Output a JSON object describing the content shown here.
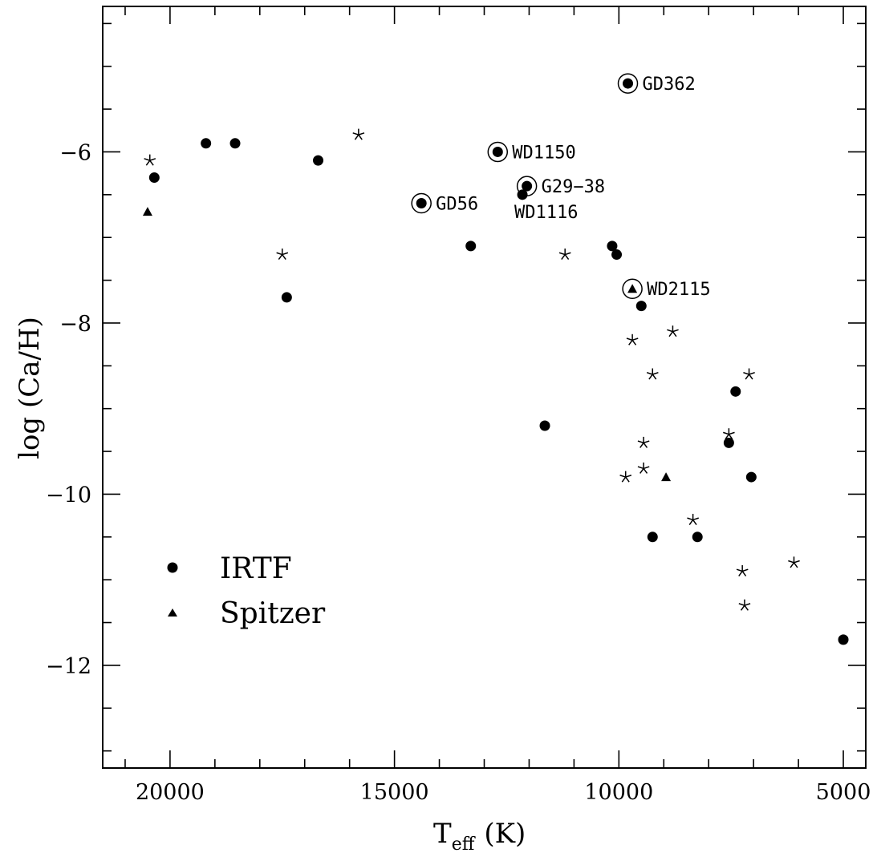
{
  "chart_data": {
    "type": "scatter",
    "title": "",
    "xlabel": {
      "main": "T",
      "sub": "eff",
      "unit": "(K)"
    },
    "ylabel": "log (Ca/H)",
    "xlim": [
      21500,
      4500
    ],
    "ylim": [
      -13.2,
      -4.3
    ],
    "x_ticks": [
      20000,
      15000,
      10000,
      5000
    ],
    "x_tick_labels": [
      "20000",
      "15000",
      "10000",
      "5000"
    ],
    "y_ticks": [
      -6,
      -8,
      -10,
      -12
    ],
    "y_tick_labels": [
      "−6",
      "−8",
      "−10",
      "−12"
    ],
    "grid": false,
    "legend": {
      "placement": "bottom-left",
      "entries": [
        "IRTF",
        "Spitzer"
      ]
    },
    "series": [
      {
        "name": "IRTF",
        "marker": "filled-circle",
        "points": [
          {
            "x": 20350,
            "y": -6.3
          },
          {
            "x": 19200,
            "y": -5.9
          },
          {
            "x": 18550,
            "y": -5.9
          },
          {
            "x": 16700,
            "y": -6.1
          },
          {
            "x": 17400,
            "y": -7.7
          },
          {
            "x": 14400,
            "y": -6.6
          },
          {
            "x": 13300,
            "y": -7.1
          },
          {
            "x": 12700,
            "y": -6.0
          },
          {
            "x": 12050,
            "y": -6.4
          },
          {
            "x": 12150,
            "y": -6.5
          },
          {
            "x": 11650,
            "y": -9.2
          },
          {
            "x": 10150,
            "y": -7.1
          },
          {
            "x": 10050,
            "y": -7.2
          },
          {
            "x": 9800,
            "y": -5.2
          },
          {
            "x": 9500,
            "y": -7.8
          },
          {
            "x": 9250,
            "y": -10.5
          },
          {
            "x": 8250,
            "y": -10.5
          },
          {
            "x": 7550,
            "y": -9.4
          },
          {
            "x": 7400,
            "y": -8.8
          },
          {
            "x": 7050,
            "y": -9.8
          },
          {
            "x": 5000,
            "y": -11.7
          }
        ]
      },
      {
        "name": "Spitzer",
        "marker": "filled-triangle",
        "points": [
          {
            "x": 20500,
            "y": -6.7
          },
          {
            "x": 9700,
            "y": -7.6
          },
          {
            "x": 8950,
            "y": -9.8
          }
        ]
      },
      {
        "marker": "star",
        "points": [
          {
            "x": 20450,
            "y": -6.1
          },
          {
            "x": 15800,
            "y": -5.8
          },
          {
            "x": 17500,
            "y": -7.2
          },
          {
            "x": 11200,
            "y": -7.2
          },
          {
            "x": 9700,
            "y": -8.2
          },
          {
            "x": 8800,
            "y": -8.1
          },
          {
            "x": 9250,
            "y": -8.6
          },
          {
            "x": 7100,
            "y": -8.6
          },
          {
            "x": 9450,
            "y": -9.4
          },
          {
            "x": 7550,
            "y": -9.3
          },
          {
            "x": 9450,
            "y": -9.7
          },
          {
            "x": 9850,
            "y": -9.8
          },
          {
            "x": 8350,
            "y": -10.3
          },
          {
            "x": 7250,
            "y": -10.9
          },
          {
            "x": 7200,
            "y": -11.3
          },
          {
            "x": 6100,
            "y": -10.8
          }
        ]
      }
    ],
    "annotations": [
      {
        "text": "GD362",
        "x": 9800,
        "y": -5.2,
        "ringed": true,
        "label_side": "right"
      },
      {
        "text": "WD1150",
        "x": 12700,
        "y": -6.0,
        "ringed": true,
        "label_side": "right"
      },
      {
        "text": "G29−38",
        "x": 12050,
        "y": -6.4,
        "ringed": true,
        "label_side": "right"
      },
      {
        "text": "GD56",
        "x": 14400,
        "y": -6.6,
        "ringed": true,
        "label_side": "right"
      },
      {
        "text": "WD1116",
        "x": 12150,
        "y": -6.5,
        "ringed": false,
        "label_side": "below"
      },
      {
        "text": "WD2115",
        "x": 9700,
        "y": -7.6,
        "ringed": true,
        "label_side": "right"
      }
    ]
  }
}
